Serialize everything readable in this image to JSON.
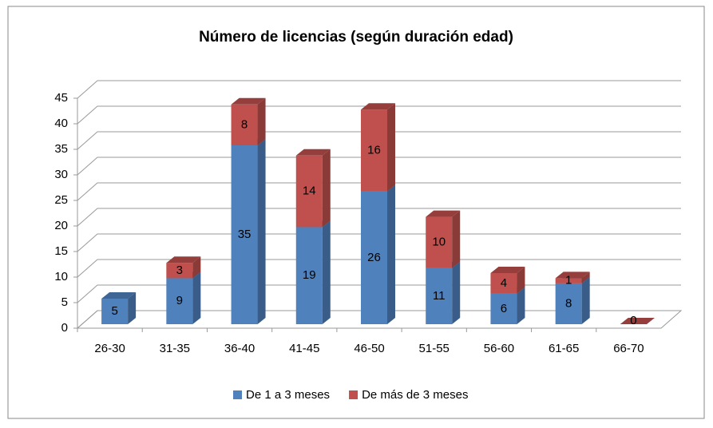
{
  "chart_data": {
    "type": "bar3d_stacked",
    "title": "Número de licencias (según duración  edad)",
    "categories": [
      "26-30",
      "31-35",
      "36-40",
      "41-45",
      "46-50",
      "51-55",
      "56-60",
      "61-65",
      "66-70"
    ],
    "series": [
      {
        "name": "De 1 a 3 meses",
        "color": "#4f81bd",
        "values": [
          5,
          9,
          35,
          19,
          26,
          11,
          6,
          8,
          0
        ]
      },
      {
        "name": "De más de 3 meses",
        "color": "#c0504d",
        "values": [
          null,
          3,
          8,
          14,
          16,
          10,
          4,
          1,
          0
        ]
      }
    ],
    "ylim": [
      0,
      45
    ],
    "yticks": [
      0,
      5,
      10,
      15,
      20,
      25,
      30,
      35,
      40,
      45
    ],
    "grid": true,
    "legend": "bottom"
  }
}
